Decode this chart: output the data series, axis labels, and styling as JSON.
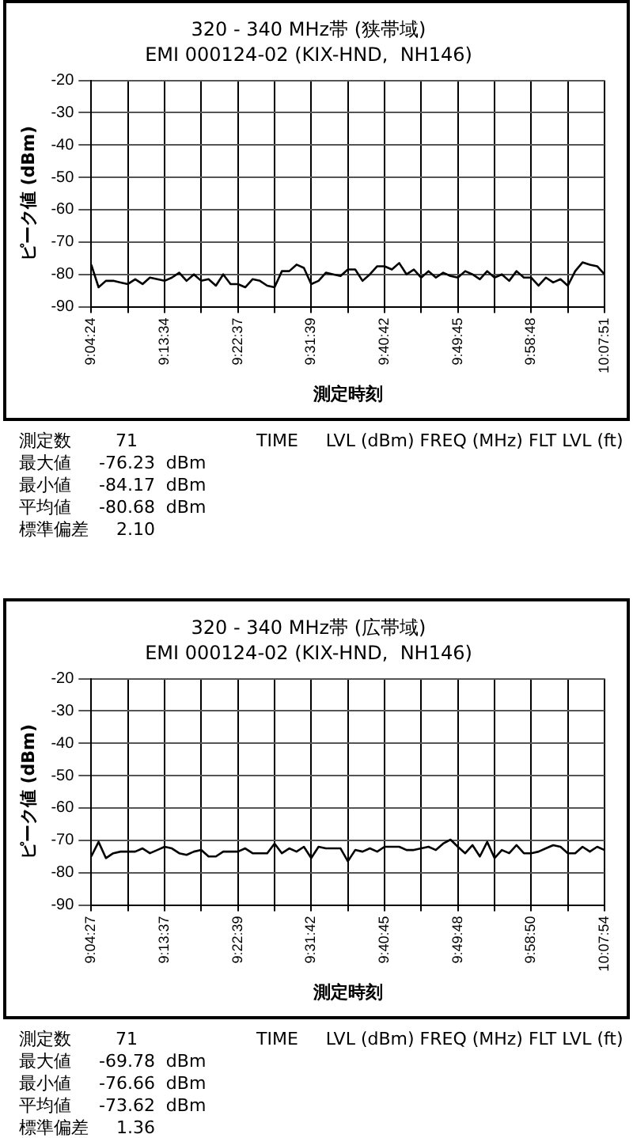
{
  "chart_data": [
    {
      "type": "line",
      "title": "320 - 340 MHz帯 (狭帯域)",
      "subtitle": "EMI 000124-02 (KIX-HND,  NH146)",
      "xlabel": "測定時刻",
      "ylabel": "ピーク値 (dBm)",
      "categories": [
        "9:04:24",
        null,
        null,
        null,
        null,
        null,
        null,
        null,
        null,
        null,
        "9:13:34",
        null,
        null,
        null,
        null,
        null,
        null,
        null,
        null,
        null,
        "9:22:37",
        null,
        null,
        null,
        null,
        null,
        null,
        null,
        null,
        null,
        "9:31:39",
        null,
        null,
        null,
        null,
        null,
        null,
        null,
        null,
        null,
        "9:40:42",
        null,
        null,
        null,
        null,
        null,
        null,
        null,
        null,
        null,
        "9:49:45",
        null,
        null,
        null,
        null,
        null,
        null,
        null,
        null,
        null,
        "9:58:48",
        null,
        null,
        null,
        null,
        null,
        null,
        null,
        null,
        null,
        "10:07:51"
      ],
      "series": [
        {
          "color": "#000000",
          "values": [
            -77,
            -84,
            -82,
            -82,
            -82.5,
            -83,
            -81.5,
            -83,
            -81,
            -81.5,
            -82,
            -81,
            -79.5,
            -82,
            -80,
            -82,
            -81.5,
            -83.5,
            -80,
            -83,
            -83,
            -84,
            -81.5,
            -82,
            -83.5,
            -84,
            -79,
            -79,
            -77,
            -78,
            -83,
            -82,
            -79.5,
            -80,
            -80.5,
            -78.5,
            -78.5,
            -82,
            -80,
            -77.5,
            -77.5,
            -78.5,
            -76.5,
            -80,
            -78.5,
            -81,
            -79,
            -81,
            -79.5,
            -80.5,
            -81,
            -79,
            -80,
            -81.5,
            -79,
            -81,
            -80,
            -82,
            -79,
            -81,
            -81,
            -83.5,
            -81,
            -82.5,
            -81.5,
            -83.5,
            -79,
            -76.3,
            -77,
            -77.5,
            -80
          ]
        }
      ],
      "ylim": [
        -90,
        -20
      ],
      "yticks": [
        -90,
        -80,
        -70,
        -60,
        -50,
        -40,
        -30,
        -20
      ],
      "grid": true,
      "legend": false,
      "marker": "none",
      "line_style": "solid",
      "annotations": [
        "測定数        71",
        "最大値     -76.23  dBm",
        "最小値     -84.17  dBm",
        "平均値     -80.68  dBm",
        "標準偏差     2.10",
        "TIME     LVL (dBm) FREQ (MHz) FLT LVL (ft)"
      ]
    },
    {
      "type": "line",
      "title": "320 - 340 MHz帯 (広帯域)",
      "subtitle": "EMI 000124-02 (KIX-HND,  NH146)",
      "xlabel": "測定時刻",
      "ylabel": "ピーク値 (dBm)",
      "categories": [
        "9:04:27",
        null,
        null,
        null,
        null,
        null,
        null,
        null,
        null,
        null,
        "9:13:37",
        null,
        null,
        null,
        null,
        null,
        null,
        null,
        null,
        null,
        "9:22:39",
        null,
        null,
        null,
        null,
        null,
        null,
        null,
        null,
        null,
        "9:31:42",
        null,
        null,
        null,
        null,
        null,
        null,
        null,
        null,
        null,
        "9:40:45",
        null,
        null,
        null,
        null,
        null,
        null,
        null,
        null,
        null,
        "9:49:48",
        null,
        null,
        null,
        null,
        null,
        null,
        null,
        null,
        null,
        "9:58:50",
        null,
        null,
        null,
        null,
        null,
        null,
        null,
        null,
        null,
        "10:07:54"
      ],
      "series": [
        {
          "color": "#000000",
          "values": [
            -75,
            -70.5,
            -75.5,
            -74,
            -73.5,
            -73.5,
            -73.5,
            -72.5,
            -74,
            -73,
            -72,
            -72.5,
            -74,
            -74.5,
            -73.5,
            -73,
            -75,
            -75,
            -73.5,
            -73.5,
            -73.5,
            -72.5,
            -74,
            -74,
            -74,
            -71,
            -74,
            -72.5,
            -73.5,
            -72,
            -75.5,
            -72,
            -72.5,
            -72.5,
            -72.5,
            -76.5,
            -73,
            -73.5,
            -72.5,
            -73.5,
            -72,
            -72,
            -72,
            -73,
            -73,
            -72.5,
            -72,
            -73,
            -71,
            -69.8,
            -72,
            -74,
            -71.5,
            -75,
            -70.5,
            -75.5,
            -73,
            -74,
            -71.5,
            -74,
            -74,
            -73.5,
            -72.5,
            -71.5,
            -72,
            -74,
            -74,
            -72,
            -73.5,
            -72,
            -73
          ]
        }
      ],
      "ylim": [
        -90,
        -20
      ],
      "yticks": [
        -90,
        -80,
        -70,
        -60,
        -50,
        -40,
        -30,
        -20
      ],
      "grid": true,
      "legend": false,
      "marker": "none",
      "line_style": "solid",
      "annotations": [
        "測定数        71",
        "最大値     -69.78  dBm",
        "最小値     -76.66  dBm",
        "平均値     -73.62  dBm",
        "標準偏差     1.36",
        "TIME     LVL (dBm) FREQ (MHz) FLT LVL (ft)"
      ]
    }
  ]
}
